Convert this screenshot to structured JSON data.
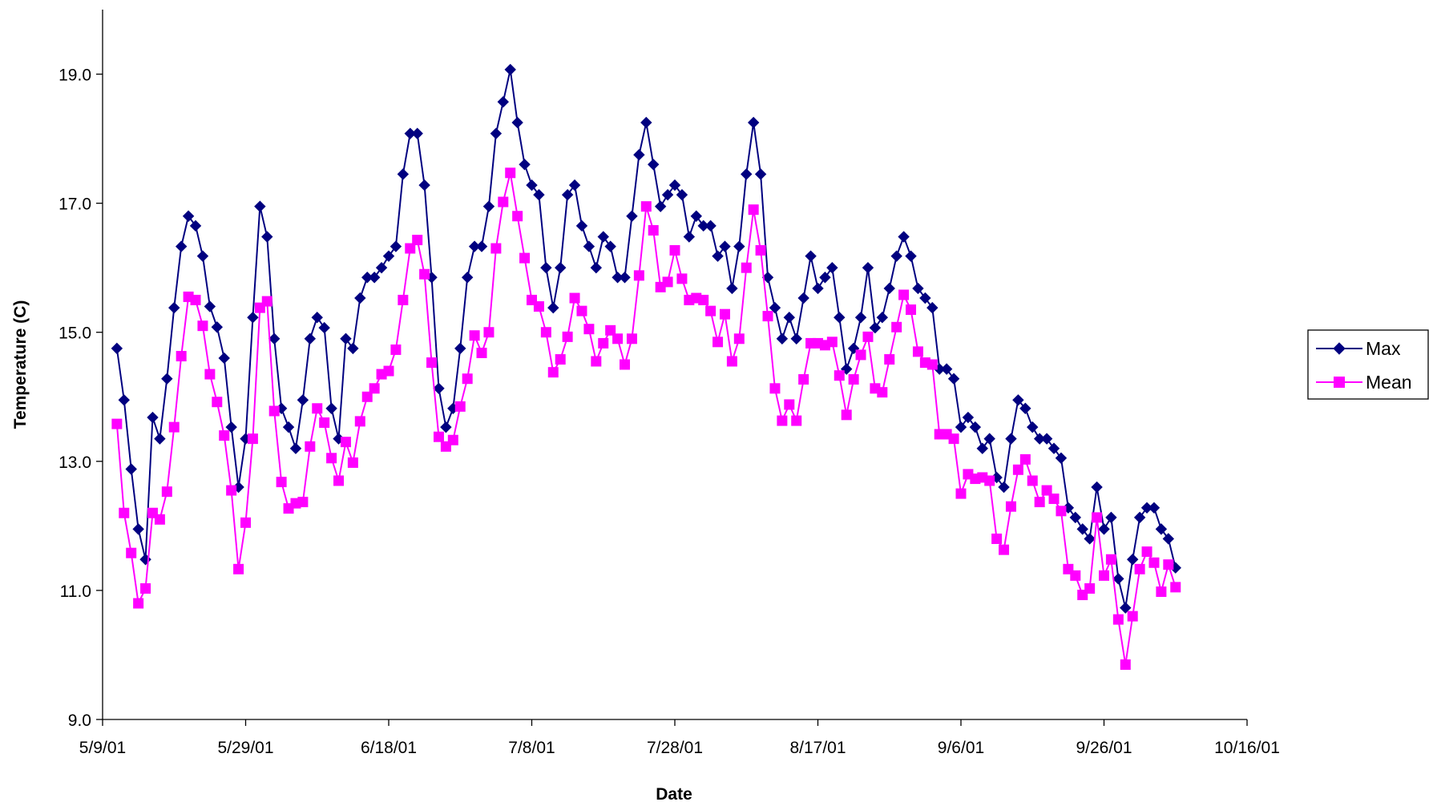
{
  "chart_data": {
    "type": "line",
    "xlabel": "Date",
    "ylabel": "Temperature (C)",
    "xlim": [
      "5/9/01",
      "10/16/01"
    ],
    "ylim": [
      9,
      20
    ],
    "x_tick_labels": [
      "5/9/01",
      "5/29/01",
      "6/18/01",
      "7/8/01",
      "7/28/01",
      "8/17/01",
      "9/6/01",
      "9/26/01",
      "10/16/01"
    ],
    "y_tick_labels": [
      "9.0",
      "11.0",
      "13.0",
      "15.0",
      "17.0",
      "19.0"
    ],
    "y_ticks": [
      9,
      11,
      13,
      15,
      17,
      19
    ],
    "legend_position": "right",
    "grid": false,
    "start_date": "5/11/01",
    "series": [
      {
        "name": "Max",
        "color": "#000080",
        "marker": "diamond",
        "values": [
          14.75,
          13.95,
          12.88,
          11.95,
          11.48,
          13.68,
          13.35,
          14.28,
          15.38,
          16.33,
          16.8,
          16.65,
          16.18,
          15.4,
          15.08,
          14.6,
          13.53,
          12.6,
          13.35,
          15.23,
          16.95,
          16.48,
          14.9,
          13.82,
          13.53,
          13.2,
          13.95,
          14.9,
          15.23,
          15.07,
          13.82,
          13.35,
          14.9,
          14.75,
          15.53,
          15.85,
          15.85,
          16.0,
          16.18,
          16.33,
          17.45,
          18.08,
          18.08,
          17.28,
          15.85,
          14.13,
          13.53,
          13.82,
          14.75,
          15.85,
          16.33,
          16.33,
          16.95,
          18.08,
          18.57,
          19.07,
          18.25,
          17.6,
          17.28,
          17.13,
          16.0,
          15.38,
          16.0,
          17.13,
          17.28,
          16.65,
          16.33,
          16.0,
          16.48,
          16.33,
          15.85,
          15.85,
          16.8,
          17.75,
          18.25,
          17.6,
          16.95,
          17.13,
          17.28,
          17.13,
          16.48,
          16.8,
          16.65,
          16.65,
          16.18,
          16.33,
          15.68,
          16.33,
          17.45,
          18.25,
          17.45,
          15.85,
          15.38,
          14.9,
          15.23,
          14.9,
          15.53,
          16.18,
          15.68,
          15.85,
          16.0,
          15.23,
          14.43,
          14.75,
          15.23,
          16.0,
          15.07,
          15.23,
          15.68,
          16.18,
          16.48,
          16.18,
          15.68,
          15.53,
          15.38,
          14.43,
          14.43,
          14.28,
          13.53,
          13.68,
          13.53,
          13.2,
          13.35,
          12.75,
          12.6,
          13.35,
          13.95,
          13.82,
          13.53,
          13.35,
          13.35,
          13.2,
          13.05,
          12.28,
          12.13,
          11.95,
          11.8,
          12.6,
          11.95,
          12.13,
          11.18,
          10.73,
          11.48,
          12.13,
          12.28,
          12.28,
          11.95,
          11.8,
          11.35
        ]
      },
      {
        "name": "Mean",
        "color": "#FF00FF",
        "marker": "square",
        "values": [
          13.58,
          12.2,
          11.58,
          10.8,
          11.03,
          12.2,
          12.1,
          12.53,
          13.53,
          14.63,
          15.55,
          15.5,
          15.1,
          14.35,
          13.92,
          13.4,
          12.55,
          11.33,
          12.05,
          13.35,
          15.38,
          15.48,
          13.78,
          12.68,
          12.27,
          12.35,
          12.37,
          13.23,
          13.82,
          13.6,
          13.05,
          12.7,
          13.3,
          12.98,
          13.62,
          14.0,
          14.13,
          14.35,
          14.4,
          14.73,
          15.5,
          16.3,
          16.43,
          15.9,
          14.53,
          13.38,
          13.23,
          13.33,
          13.85,
          14.28,
          14.95,
          14.68,
          15.0,
          16.3,
          17.02,
          17.47,
          16.8,
          16.15,
          15.5,
          15.4,
          15.0,
          14.38,
          14.58,
          14.93,
          15.53,
          15.33,
          15.05,
          14.55,
          14.83,
          15.03,
          14.9,
          14.5,
          14.9,
          15.88,
          16.95,
          16.58,
          15.7,
          15.78,
          16.27,
          15.83,
          15.5,
          15.53,
          15.5,
          15.33,
          14.85,
          15.28,
          14.55,
          14.9,
          16.0,
          16.9,
          16.27,
          15.25,
          14.13,
          13.63,
          13.88,
          13.63,
          14.27,
          14.83,
          14.83,
          14.8,
          14.85,
          14.33,
          13.72,
          14.27,
          14.65,
          14.93,
          14.13,
          14.07,
          14.58,
          15.08,
          15.58,
          15.35,
          14.7,
          14.53,
          14.5,
          13.42,
          13.42,
          13.35,
          12.5,
          12.8,
          12.73,
          12.75,
          12.7,
          11.8,
          11.63,
          12.3,
          12.87,
          13.03,
          12.7,
          12.37,
          12.55,
          12.42,
          12.23,
          11.33,
          11.23,
          10.93,
          11.03,
          12.13,
          11.23,
          11.48,
          10.55,
          9.85,
          10.6,
          11.33,
          11.6,
          11.43,
          10.98,
          11.4,
          11.05
        ]
      }
    ]
  }
}
